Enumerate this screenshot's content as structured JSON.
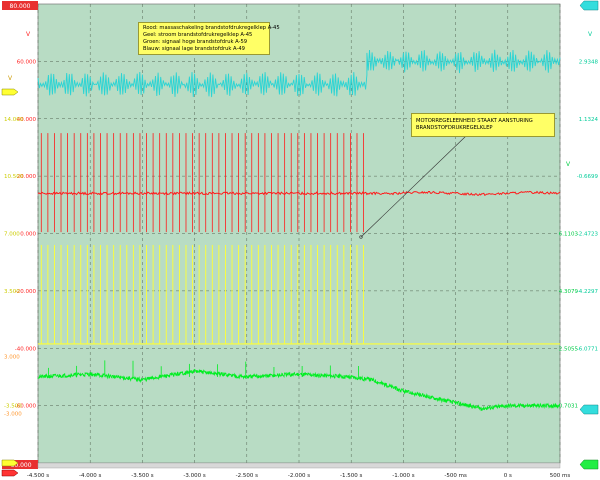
{
  "legend": {
    "lines": [
      "Rood: massaschakeling brandstofdrukregelklep A-45",
      "Geel: stroom brandstofdrukregelklep A-45",
      "Groen: signaal hoge brandstofdruk A-59",
      "Blauw: signaal lage brandstofdruk A-49"
    ]
  },
  "annotation": {
    "line1": "MOTORREGELEENHEID STAAKT AANSTURING",
    "line2": "BRANDSTOFDRUKREGELKLEP"
  },
  "colors": {
    "plot_bg": "#b8dcc4",
    "red": "#ff1a1a",
    "yellow": "#ffff33",
    "green": "#00ee22",
    "cyan": "#2ad4d4",
    "left_scale": "#ff2222",
    "right_scale": "#00cc99",
    "bg_label_yellow": "#cccc00",
    "bg_label_orange": "#ff9933"
  },
  "left_axis": {
    "top_badge": "80.000",
    "bottom_badge": "-80.000",
    "unit": "V",
    "ticks": [
      "60.000",
      "40.000",
      "20.000",
      "0.000",
      "-20.000",
      "-40.000",
      "-60.000"
    ]
  },
  "left_faint_labels": {
    "cyan_unit": "V",
    "yellow_vals": [
      "14.000",
      "10.500",
      "7.000",
      "3.500",
      "-3.500"
    ],
    "red_vals": [
      "3.000",
      "-3.000"
    ]
  },
  "right_axis": {
    "cyan_unit": "V",
    "cyan_ticks": [
      "2.9348",
      "1.1324",
      "-0.6699",
      "-2.4723"
    ],
    "green_unit": "V",
    "green_ticks": [
      "6.1103",
      "4.3079",
      "2.5055",
      "0.7031"
    ],
    "green_left_ticks": [
      "-4.2297",
      "-6.0771"
    ]
  },
  "x_axis": {
    "ticks": [
      "-4.500 s",
      "-4.000 s",
      "-3.500 s",
      "-3.000 s",
      "-2.500 s",
      "-2.000 s",
      "-1.500 s",
      "-1.000 s",
      "-500 ms",
      "0 s",
      "500 ms"
    ]
  },
  "chart_data": {
    "type": "line",
    "xlim": [
      -4.5,
      0.5
    ],
    "ylim": [
      -80,
      80
    ],
    "grid": true,
    "series": [
      {
        "color": "#2ad4d4",
        "segments": [
          {
            "x": [
              -4.5,
              -1.35
            ],
            "mean": 52,
            "ripple": 4
          },
          {
            "x": [
              -1.35,
              0.5
            ],
            "mean": 60,
            "ripple": 3.5
          }
        ]
      },
      {
        "color": "#ff1a1a",
        "baseline_x": [
          -4.5,
          0.5
        ],
        "baseline": 14,
        "pulse_x": [
          -4.5,
          -1.35
        ],
        "pulse_high": 35,
        "pulse_low": 0.5,
        "pulse_count": 50
      },
      {
        "color": "#ffff33",
        "baseline_x": [
          -4.5,
          0.5
        ],
        "baseline": -38.5,
        "pulse_x": [
          -4.5,
          -1.35
        ],
        "pulse_high": -4,
        "pulse_count": 50
      },
      {
        "color": "#00ee22",
        "points": [
          [
            -4.5,
            -50
          ],
          [
            -4.0,
            -49
          ],
          [
            -3.5,
            -51
          ],
          [
            -3.0,
            -48
          ],
          [
            -2.5,
            -50
          ],
          [
            -2.0,
            -49
          ],
          [
            -1.5,
            -50
          ],
          [
            -1.3,
            -51
          ],
          [
            -1.0,
            -55
          ],
          [
            -0.5,
            -59
          ],
          [
            -0.25,
            -61
          ],
          [
            0.0,
            -60
          ],
          [
            0.5,
            -60
          ]
        ]
      }
    ]
  }
}
